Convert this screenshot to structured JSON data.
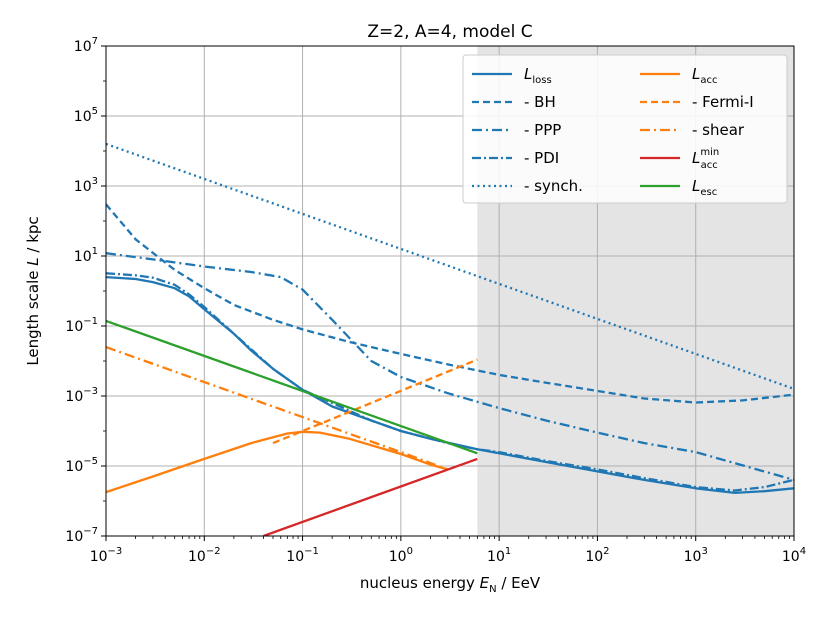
{
  "chart_data": {
    "type": "line",
    "title": "Z=2, A=4, model C",
    "xlabel": "nucleus energy E_N / EeV",
    "ylabel": "Length scale L / kpc",
    "xscale": "log",
    "yscale": "log",
    "xlim": [
      0.001,
      10000
    ],
    "ylim": [
      1e-07,
      10000000.0
    ],
    "grid": true,
    "shaded_region": {
      "x_from": 6,
      "x_to": 10000,
      "color": "#e4e4e4"
    },
    "x_ticks": [
      {
        "value": 0.001,
        "base": "10",
        "exp": "−3"
      },
      {
        "value": 0.01,
        "base": "10",
        "exp": "−2"
      },
      {
        "value": 0.1,
        "base": "10",
        "exp": "−1"
      },
      {
        "value": 1,
        "base": "10",
        "exp": "0"
      },
      {
        "value": 10,
        "base": "10",
        "exp": "1"
      },
      {
        "value": 100,
        "base": "10",
        "exp": "2"
      },
      {
        "value": 1000,
        "base": "10",
        "exp": "3"
      },
      {
        "value": 10000,
        "base": "10",
        "exp": "4"
      }
    ],
    "y_ticks": [
      {
        "value": 1e-07,
        "base": "10",
        "exp": "−7"
      },
      {
        "value": 1e-05,
        "base": "10",
        "exp": "−5"
      },
      {
        "value": 0.001,
        "base": "10",
        "exp": "−3"
      },
      {
        "value": 0.1,
        "base": "10",
        "exp": "−1"
      },
      {
        "value": 10,
        "base": "10",
        "exp": "1"
      },
      {
        "value": 1000,
        "base": "10",
        "exp": "3"
      },
      {
        "value": 100000,
        "base": "10",
        "exp": "5"
      },
      {
        "value": 10000000,
        "base": "10",
        "exp": "7"
      }
    ],
    "legend_position": "top-right",
    "series": [
      {
        "name": "L_loss",
        "color": "#1f77b4",
        "style": "solid",
        "x": [
          0.001,
          0.002,
          0.003,
          0.005,
          0.007,
          0.01,
          0.02,
          0.03,
          0.05,
          0.1,
          0.2,
          0.5,
          1,
          2,
          6,
          10,
          30,
          100,
          300,
          1000,
          2500,
          5000,
          10000
        ],
        "y": [
          2.5,
          2.2,
          1.8,
          1.2,
          0.7,
          0.3,
          0.06,
          0.02,
          0.006,
          0.0015,
          0.0005,
          0.0002,
          0.0001,
          6e-05,
          3e-05,
          2.3e-05,
          1.3e-05,
          7e-06,
          4e-06,
          2.3e-06,
          1.7e-06,
          1.9e-06,
          2.3e-06
        ]
      },
      {
        "name": "BH",
        "color": "#1f77b4",
        "style": "dashed",
        "x": [
          0.001,
          0.002,
          0.005,
          0.01,
          0.02,
          0.05,
          0.1,
          0.3,
          1,
          3,
          10,
          30,
          100,
          300,
          1000,
          3000,
          10000
        ],
        "y": [
          300,
          30,
          4,
          1.2,
          0.4,
          0.15,
          0.08,
          0.035,
          0.016,
          0.008,
          0.004,
          0.0024,
          0.0014,
          0.00085,
          0.00065,
          0.00075,
          0.0011
        ]
      },
      {
        "name": "PPP",
        "color": "#1f77b4",
        "style": "dashdot",
        "x": [
          0.001,
          0.003,
          0.01,
          0.03,
          0.06,
          0.1,
          0.2,
          0.5,
          1,
          3,
          10,
          30,
          100,
          300,
          1000,
          10000
        ],
        "y": [
          12,
          8,
          5,
          3.5,
          2.5,
          1.1,
          0.15,
          0.01,
          0.0035,
          0.0012,
          0.00045,
          0.0002,
          9e-05,
          4.5e-05,
          2.5e-05,
          4e-06
        ]
      },
      {
        "name": "PDI",
        "color": "#1f77b4",
        "style": "densedashdot",
        "x": [
          0.001,
          0.002,
          0.003,
          0.005,
          0.007,
          0.01,
          0.02,
          0.05,
          0.1,
          0.5,
          1,
          3,
          6,
          10,
          30,
          100,
          300,
          1000,
          2500,
          5000,
          10000
        ],
        "y": [
          3.2,
          2.8,
          2.4,
          1.5,
          0.8,
          0.35,
          0.06,
          0.006,
          0.0015,
          0.0002,
          0.0001,
          4.5e-05,
          3e-05,
          2.5e-05,
          1.4e-05,
          8e-06,
          4.5e-06,
          2.5e-06,
          2e-06,
          2.5e-06,
          4e-06
        ]
      },
      {
        "name": "synch.",
        "color": "#1f77b4",
        "style": "dotted",
        "x": [
          0.001,
          10000
        ],
        "y": [
          16000,
          0.0016
        ]
      },
      {
        "name": "L_acc",
        "color": "#ff7f0e",
        "style": "solid",
        "x": [
          0.001,
          0.003,
          0.01,
          0.03,
          0.07,
          0.1,
          0.15,
          0.3,
          1,
          2,
          3
        ],
        "y": [
          1.8e-06,
          5e-06,
          1.6e-05,
          4.5e-05,
          8.5e-05,
          9.5e-05,
          9e-05,
          6e-05,
          2.2e-05,
          1.1e-05,
          8e-06
        ]
      },
      {
        "name": "Fermi-I",
        "color": "#ff7f0e",
        "style": "dashed",
        "x": [
          0.05,
          6
        ],
        "y": [
          4.5e-05,
          0.011
        ]
      },
      {
        "name": "shear",
        "color": "#ff7f0e",
        "style": "dashdot",
        "x": [
          0.001,
          0.01,
          0.1,
          1,
          3
        ],
        "y": [
          0.025,
          0.0025,
          0.00025,
          2.5e-05,
          8e-06
        ]
      },
      {
        "name": "L_acc_min",
        "color": "#d62728",
        "style": "solid",
        "x": [
          0.04,
          6
        ],
        "y": [
          1e-07,
          1.6e-05
        ]
      },
      {
        "name": "L_esc",
        "color": "#2ca02c",
        "style": "solid",
        "x": [
          0.001,
          6
        ],
        "y": [
          0.14,
          2.3e-05
        ]
      }
    ],
    "legend": [
      {
        "label": "L",
        "sub": "loss",
        "sup": "",
        "color": "#1f77b4",
        "style": "solid"
      },
      {
        "label": "- BH",
        "sub": "",
        "sup": "",
        "color": "#1f77b4",
        "style": "dashed"
      },
      {
        "label": "- PPP",
        "sub": "",
        "sup": "",
        "color": "#1f77b4",
        "style": "dashdot"
      },
      {
        "label": "- PDI",
        "sub": "",
        "sup": "",
        "color": "#1f77b4",
        "style": "densedashdot"
      },
      {
        "label": "- synch.",
        "sub": "",
        "sup": "",
        "color": "#1f77b4",
        "style": "dotted"
      },
      {
        "label": "L",
        "sub": "acc",
        "sup": "",
        "color": "#ff7f0e",
        "style": "solid"
      },
      {
        "label": "- Fermi-I",
        "sub": "",
        "sup": "",
        "color": "#ff7f0e",
        "style": "dashed"
      },
      {
        "label": "- shear",
        "sub": "",
        "sup": "",
        "color": "#ff7f0e",
        "style": "dashdot"
      },
      {
        "label": "L",
        "sub": "acc",
        "sup": "min",
        "color": "#d62728",
        "style": "solid"
      },
      {
        "label": "L",
        "sub": "esc",
        "sup": "",
        "color": "#2ca02c",
        "style": "solid"
      }
    ]
  }
}
